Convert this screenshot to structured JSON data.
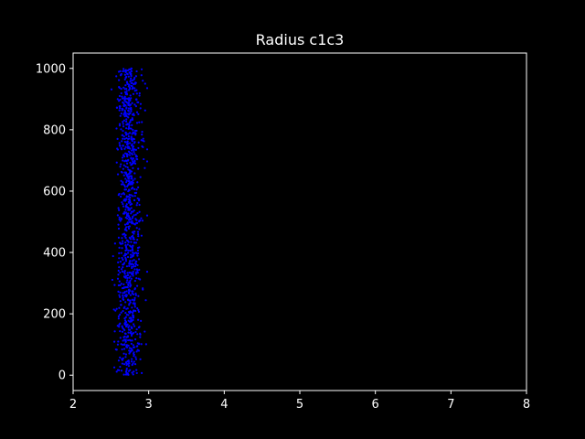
{
  "chart_data": {
    "type": "scatter",
    "title": "Radius c1c3",
    "xlabel": "",
    "ylabel": "",
    "xlim": [
      2,
      8
    ],
    "ylim": [
      -50,
      1050
    ],
    "xticks": [
      2,
      3,
      4,
      5,
      6,
      7,
      8
    ],
    "yticks": [
      0,
      200,
      400,
      600,
      800,
      1000
    ],
    "grid": false,
    "legend": "none",
    "marker_color": "#0000ff",
    "background_color": "#000000",
    "axis_color": "#ffffff",
    "text_color": "#ffffff",
    "series": [
      {
        "points_count": 1000,
        "y_range": [
          0,
          1000
        ],
        "x_center": 2.74,
        "x_spread": 0.08,
        "x_min": 2.45,
        "x_max": 2.98
      }
    ]
  }
}
